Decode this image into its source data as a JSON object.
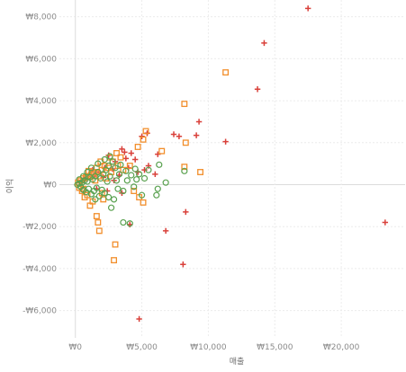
{
  "chart_data": {
    "type": "scatter",
    "xlabel": "매출",
    "ylabel": "이익",
    "xlim": [
      -1200,
      24800
    ],
    "ylim": [
      -7300,
      8800
    ],
    "x_ticks": [
      {
        "value": 0,
        "label": "₩0"
      },
      {
        "value": 5000,
        "label": "₩5,000"
      },
      {
        "value": 10000,
        "label": "₩10,000"
      },
      {
        "value": 15000,
        "label": "₩15,000"
      },
      {
        "value": 20000,
        "label": "₩20,000"
      }
    ],
    "y_ticks": [
      {
        "value": 8000,
        "label": "₩8,000"
      },
      {
        "value": 6000,
        "label": "₩6,000"
      },
      {
        "value": 4000,
        "label": "₩4,000"
      },
      {
        "value": 2000,
        "label": "₩2,000"
      },
      {
        "value": 0,
        "label": "₩0"
      },
      {
        "value": -2000,
        "label": "-₩2,000"
      },
      {
        "value": -4000,
        "label": "-₩4,000"
      },
      {
        "value": -6000,
        "label": "-₩6,000"
      }
    ],
    "grid": true,
    "legend": "none",
    "series": [
      {
        "marker": "cross",
        "color": "#d9403a",
        "points": [
          [
            17500,
            8400
          ],
          [
            14200,
            6750
          ],
          [
            13700,
            4550
          ],
          [
            11300,
            2050
          ],
          [
            23300,
            -1800
          ],
          [
            9300,
            3000
          ],
          [
            9100,
            2350
          ],
          [
            7400,
            2400
          ],
          [
            7800,
            2300
          ],
          [
            5400,
            2450
          ],
          [
            5000,
            2300
          ],
          [
            3500,
            1700
          ],
          [
            3700,
            1550
          ],
          [
            4200,
            1500
          ],
          [
            6200,
            1450
          ],
          [
            4500,
            1200
          ],
          [
            3000,
            1100
          ],
          [
            5500,
            900
          ],
          [
            2500,
            1400
          ],
          [
            2800,
            750
          ],
          [
            4100,
            -1900
          ],
          [
            8100,
            -3800
          ],
          [
            8300,
            -1300
          ],
          [
            6800,
            -2200
          ],
          [
            4800,
            -6400
          ],
          [
            2200,
            800
          ],
          [
            1800,
            600
          ],
          [
            1500,
            500
          ],
          [
            1200,
            400
          ],
          [
            900,
            300
          ],
          [
            700,
            250
          ],
          [
            500,
            150
          ],
          [
            300,
            100
          ],
          [
            1600,
            -200
          ],
          [
            2400,
            -300
          ],
          [
            3300,
            450
          ],
          [
            4000,
            800
          ],
          [
            2900,
            200
          ],
          [
            2100,
            350
          ],
          [
            1300,
            700
          ],
          [
            3800,
            1250
          ],
          [
            4700,
            600
          ],
          [
            5200,
            700
          ],
          [
            6000,
            500
          ],
          [
            3500,
            -400
          ]
        ]
      },
      {
        "marker": "square",
        "color": "#f28e2b",
        "points": [
          [
            11300,
            5350
          ],
          [
            8200,
            3850
          ],
          [
            5300,
            2550
          ],
          [
            5100,
            2150
          ],
          [
            8300,
            2000
          ],
          [
            6500,
            1600
          ],
          [
            9400,
            600
          ],
          [
            8200,
            850
          ],
          [
            4700,
            1800
          ],
          [
            3400,
            1300
          ],
          [
            3100,
            1500
          ],
          [
            2800,
            1100
          ],
          [
            2600,
            1300
          ],
          [
            3000,
            -2850
          ],
          [
            2900,
            -3600
          ],
          [
            1700,
            -1800
          ],
          [
            1800,
            -2200
          ],
          [
            4800,
            -600
          ],
          [
            5100,
            -850
          ],
          [
            4400,
            -300
          ],
          [
            3200,
            900
          ],
          [
            2200,
            900
          ],
          [
            2000,
            700
          ],
          [
            1600,
            800
          ],
          [
            1400,
            600
          ],
          [
            1200,
            500
          ],
          [
            1000,
            400
          ],
          [
            800,
            350
          ],
          [
            600,
            300
          ],
          [
            400,
            200
          ],
          [
            200,
            100
          ],
          [
            500,
            -300
          ],
          [
            900,
            -500
          ],
          [
            1300,
            -800
          ],
          [
            700,
            -600
          ],
          [
            1100,
            -1000
          ],
          [
            1600,
            -1500
          ],
          [
            2000,
            -400
          ],
          [
            2300,
            300
          ],
          [
            2700,
            600
          ],
          [
            1900,
            1100
          ],
          [
            2500,
            800
          ],
          [
            3600,
            700
          ],
          [
            4100,
            900
          ],
          [
            300,
            -150
          ],
          [
            1500,
            200
          ],
          [
            2100,
            -700
          ],
          [
            1000,
            650
          ],
          [
            600,
            -200
          ],
          [
            1800,
            400
          ]
        ]
      },
      {
        "marker": "circle",
        "color": "#59a14f",
        "points": [
          [
            6300,
            950
          ],
          [
            8200,
            650
          ],
          [
            6800,
            100
          ],
          [
            6200,
            -200
          ],
          [
            6100,
            -500
          ],
          [
            5200,
            300
          ],
          [
            5000,
            -500
          ],
          [
            4500,
            750
          ],
          [
            4800,
            500
          ],
          [
            3900,
            200
          ],
          [
            3600,
            -300
          ],
          [
            3300,
            500
          ],
          [
            3100,
            200
          ],
          [
            2900,
            -700
          ],
          [
            2700,
            -1100
          ],
          [
            3600,
            -1800
          ],
          [
            4100,
            -1850
          ],
          [
            2800,
            1100
          ],
          [
            2500,
            900
          ],
          [
            2300,
            700
          ],
          [
            2100,
            500
          ],
          [
            1900,
            300
          ],
          [
            1700,
            600
          ],
          [
            1500,
            400
          ],
          [
            1300,
            250
          ],
          [
            1100,
            350
          ],
          [
            900,
            150
          ],
          [
            700,
            200
          ],
          [
            500,
            100
          ],
          [
            300,
            50
          ],
          [
            150,
            0
          ],
          [
            400,
            -100
          ],
          [
            600,
            -250
          ],
          [
            800,
            -350
          ],
          [
            1000,
            -200
          ],
          [
            1200,
            -450
          ],
          [
            1400,
            -300
          ],
          [
            1600,
            -150
          ],
          [
            1800,
            -550
          ],
          [
            2000,
            -250
          ],
          [
            2200,
            -400
          ],
          [
            2400,
            150
          ],
          [
            2600,
            400
          ],
          [
            3000,
            800
          ],
          [
            3400,
            950
          ],
          [
            3800,
            650
          ],
          [
            4200,
            450
          ],
          [
            4600,
            250
          ],
          [
            5500,
            700
          ],
          [
            1700,
            1000
          ],
          [
            2200,
            1200
          ],
          [
            2600,
            1350
          ],
          [
            1200,
            800
          ],
          [
            900,
            600
          ],
          [
            600,
            400
          ],
          [
            300,
            250
          ],
          [
            1500,
            -700
          ],
          [
            2500,
            -600
          ],
          [
            3200,
            -200
          ],
          [
            4400,
            -100
          ]
        ]
      }
    ]
  }
}
